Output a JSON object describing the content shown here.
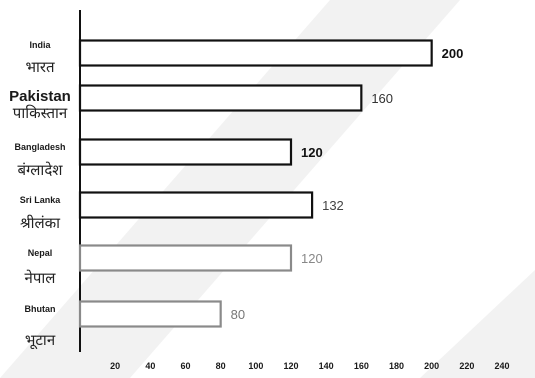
{
  "chart_data": {
    "type": "bar",
    "orientation": "horizontal",
    "categories": [
      {
        "en": "India",
        "hi": "भारत"
      },
      {
        "en": "Pakistan",
        "hi": "पाकिस्तान"
      },
      {
        "en": "Bangladesh",
        "hi": "बंग्लादेश"
      },
      {
        "en": "Sri Lanka",
        "hi": "श्रीलंका"
      },
      {
        "en": "Nepal",
        "hi": "नेपाल"
      },
      {
        "en": "Bhutan",
        "hi": "भूटान"
      }
    ],
    "values": [
      200,
      160,
      120,
      132,
      120,
      80
    ],
    "value_labels": [
      "200",
      "160",
      "120",
      "132",
      "120",
      "80"
    ],
    "x_ticks": [
      20,
      40,
      60,
      80,
      100,
      120,
      140,
      160,
      180,
      200,
      220,
      240
    ],
    "xlim": [
      0,
      240
    ],
    "grid": false,
    "bar_fill": "#ffffff",
    "bar_edge_colors": [
      "#111111",
      "#111111",
      "#111111",
      "#111111",
      "#8a8a8a",
      "#8a8a8a"
    ],
    "label_colors": [
      "#111111",
      "#333333",
      "#111111",
      "#444444",
      "#888888",
      "#777777"
    ]
  }
}
